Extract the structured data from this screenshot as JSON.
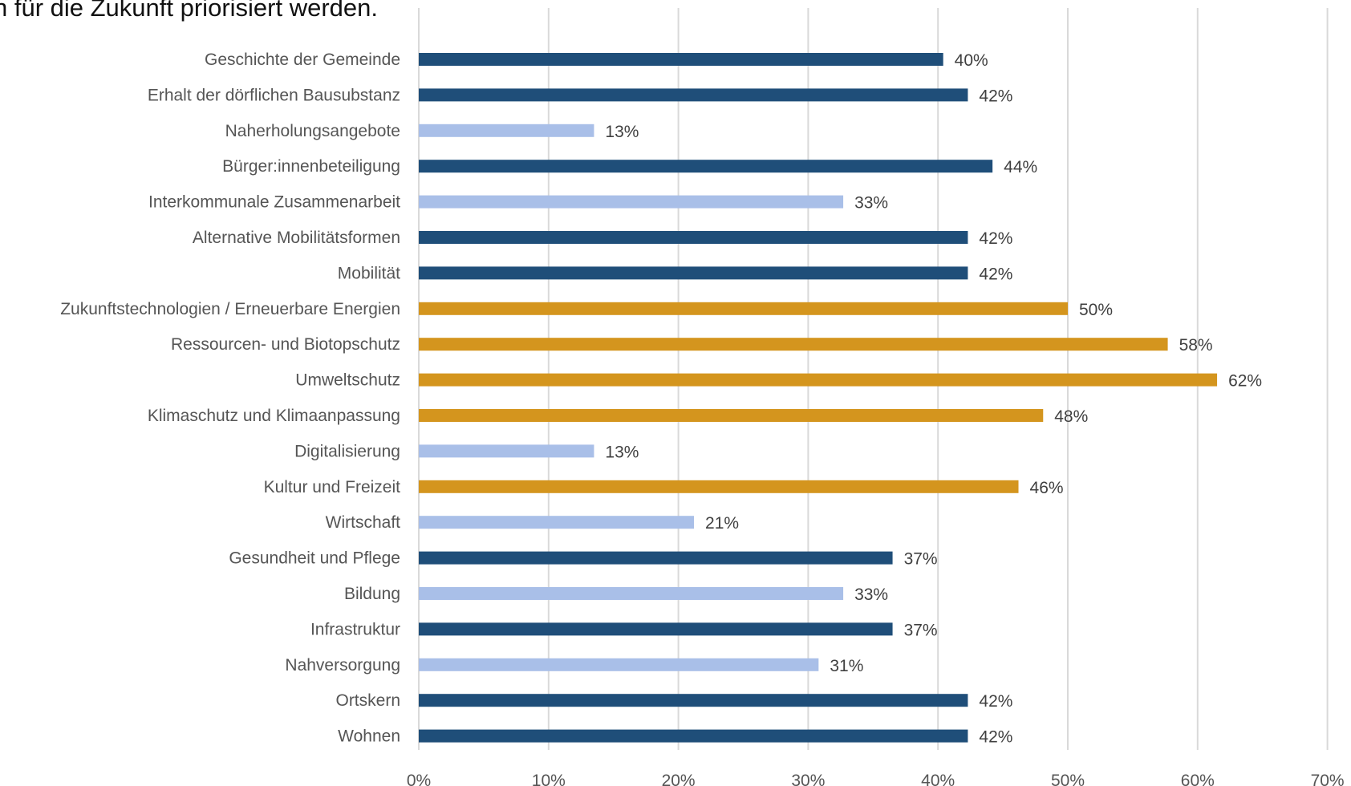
{
  "chart_data": {
    "type": "bar",
    "orientation": "horizontal",
    "title": "n für die Zukunft priorisiert werden.",
    "categories": [
      "Geschichte der Gemeinde",
      "Erhalt der dörflichen Bausubstanz",
      "Naherholungsangebote",
      "Bürger:innenbeteiligung",
      "Interkommunale Zusammenarbeit",
      "Alternative Mobilitätsformen",
      "Mobilität",
      "Zukunftstechnologien / Erneuerbare Energien",
      "Ressourcen- und Biotopschutz",
      "Umweltschutz",
      "Klimaschutz und Klimaanpassung",
      "Digitalisierung",
      "Kultur und Freizeit",
      "Wirtschaft",
      "Gesundheit und Pflege",
      "Bildung",
      "Infrastruktur",
      "Nahversorgung",
      "Ortskern",
      "Wohnen"
    ],
    "values": [
      40.4,
      42.3,
      13.5,
      44.2,
      32.7,
      42.3,
      42.3,
      50.0,
      57.7,
      61.5,
      48.1,
      13.5,
      46.2,
      21.2,
      36.5,
      32.7,
      36.5,
      30.8,
      42.3,
      42.3
    ],
    "value_labels": [
      "40%",
      "42%",
      "13%",
      "44%",
      "33%",
      "42%",
      "42%",
      "50%",
      "58%",
      "62%",
      "48%",
      "13%",
      "46%",
      "21%",
      "37%",
      "33%",
      "37%",
      "31%",
      "42%",
      "42%"
    ],
    "bar_colors": [
      "#1f4e79",
      "#1f4e79",
      "#a9bfe8",
      "#1f4e79",
      "#a9bfe8",
      "#1f4e79",
      "#1f4e79",
      "#d4951e",
      "#d4951e",
      "#d4951e",
      "#d4951e",
      "#a9bfe8",
      "#d4951e",
      "#a9bfe8",
      "#1f4e79",
      "#a9bfe8",
      "#1f4e79",
      "#a9bfe8",
      "#1f4e79",
      "#1f4e79"
    ],
    "xlim": [
      0,
      70
    ],
    "x_ticks": [
      "0%",
      "10%",
      "20%",
      "30%",
      "40%",
      "50%",
      "60%",
      "70%"
    ],
    "grid": "vertical",
    "legend": "none"
  }
}
